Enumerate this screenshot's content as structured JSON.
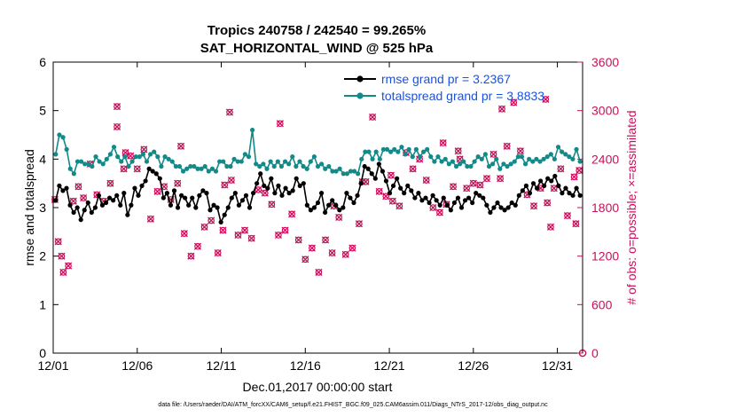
{
  "chart_data": {
    "type": "line",
    "title": "Tropics 240758 / 242540 = 99.265%",
    "subtitle": "SAT_HORIZONTAL_WIND @ 525 hPa",
    "xlabel": "Dec.01,2017 00:00:00 start",
    "ylabel": "rmse and totalspread",
    "y2label": "# of obs: o=possible; ×=assimilated",
    "xlim": [
      0,
      31.5
    ],
    "ylim": [
      0,
      6
    ],
    "y2lim": [
      0,
      3600
    ],
    "xticks": [
      0,
      5,
      10,
      15,
      20,
      25,
      30
    ],
    "xtick_labels": [
      "12/01",
      "12/06",
      "12/11",
      "12/16",
      "12/21",
      "12/26",
      "12/31"
    ],
    "yticks": [
      0,
      1,
      2,
      3,
      4,
      5,
      6
    ],
    "y2ticks": [
      0,
      600,
      1200,
      1800,
      2400,
      3000,
      3600
    ],
    "legend_location": "top-right",
    "colors": {
      "rmse": "#000000",
      "totalspread": "#138a8a",
      "obs": "#c8105a",
      "legend_text": "#1a52e0"
    },
    "series": [
      {
        "name": "rmse grand pr = 3.2367",
        "axis": "left",
        "values": [
          3.15,
          3.45,
          3.35,
          3.4,
          3.05,
          2.9,
          3.0,
          2.75,
          2.95,
          3.1,
          2.9,
          3.0,
          3.25,
          3.05,
          3.1,
          3.2,
          3.15,
          3.25,
          3.05,
          3.3,
          2.85,
          3.05,
          3.4,
          3.25,
          3.45,
          3.55,
          3.8,
          3.75,
          3.7,
          3.6,
          3.2,
          3.3,
          3.05,
          3.35,
          3.0,
          3.25,
          3.2,
          3.05,
          3.2,
          3.0,
          3.25,
          3.35,
          3.3,
          2.95,
          3.05,
          3.0,
          2.7,
          2.85,
          3.0,
          3.2,
          3.3,
          3.05,
          3.15,
          3.25,
          3.0,
          3.3,
          3.5,
          3.7,
          3.45,
          3.4,
          3.6,
          3.3,
          3.45,
          3.25,
          3.4,
          3.3,
          3.35,
          3.6,
          3.45,
          3.5,
          3.05,
          2.95,
          3.0,
          3.1,
          3.3,
          2.9,
          3.05,
          3.15,
          3.05,
          2.95,
          3.0,
          3.3,
          3.2,
          3.1,
          3.25,
          3.5,
          3.85,
          3.8,
          3.7,
          3.6,
          3.9,
          3.75,
          3.55,
          3.3,
          3.45,
          3.6,
          3.4,
          3.3,
          3.45,
          3.35,
          3.2,
          3.3,
          3.15,
          3.2,
          3.1,
          3.25,
          3.15,
          3.05,
          3.2,
          3.05,
          2.95,
          3.1,
          3.2,
          3.0,
          3.15,
          3.2,
          3.1,
          3.3,
          3.25,
          3.2,
          3.05,
          2.9,
          3.0,
          3.1,
          3.0,
          2.95,
          3.0,
          3.1,
          3.05,
          3.25,
          3.35,
          3.45,
          3.3,
          3.5,
          3.4,
          3.55,
          3.45,
          3.6,
          3.55,
          3.65,
          3.45,
          3.3,
          3.4,
          3.3,
          3.25,
          3.4,
          3.25
        ]
      },
      {
        "name": "totalspread grand pr = 3.8833",
        "axis": "left",
        "values": [
          4.1,
          4.5,
          4.45,
          4.2,
          3.8,
          3.7,
          3.95,
          3.95,
          3.9,
          3.9,
          3.85,
          4.05,
          3.95,
          3.9,
          4.0,
          4.1,
          4.25,
          4.05,
          3.95,
          4.05,
          3.85,
          3.95,
          4.05,
          4.05,
          4.1,
          3.95,
          4.1,
          4.15,
          4.05,
          3.85,
          4.05,
          4.0,
          3.95,
          3.85,
          3.85,
          3.75,
          3.8,
          3.85,
          3.85,
          3.8,
          3.8,
          3.85,
          3.75,
          3.8,
          3.75,
          3.95,
          3.95,
          3.85,
          3.85,
          4.0,
          3.95,
          3.95,
          4.1,
          4.05,
          4.6,
          3.9,
          3.85,
          3.9,
          3.8,
          3.95,
          3.85,
          3.95,
          3.85,
          3.95,
          3.9,
          4.05,
          3.85,
          3.95,
          3.85,
          3.8,
          3.95,
          4.05,
          3.85,
          3.9,
          3.8,
          3.85,
          3.75,
          3.75,
          3.8,
          3.7,
          3.7,
          3.75,
          3.75,
          3.7,
          4.0,
          4.15,
          4.15,
          4.0,
          4.15,
          4.0,
          4.2,
          4.2,
          4.15,
          4.2,
          4.15,
          4.25,
          4.1,
          4.2,
          4.05,
          4.2,
          4.05,
          4.15,
          4.2,
          4.05,
          3.95,
          4.05,
          3.95,
          4.0,
          3.9,
          3.95,
          3.85,
          3.9,
          3.95,
          3.85,
          3.85,
          3.95,
          4.05,
          4.0,
          4.1,
          3.85,
          3.9,
          4.0,
          3.8,
          3.9,
          3.85,
          3.9,
          3.95,
          4.05,
          4.05,
          3.9,
          4.0,
          3.95,
          4.0,
          3.95,
          4.0,
          4.05,
          4.1,
          4.0,
          4.25,
          4.15,
          4.1,
          4.05,
          4.0,
          4.2,
          3.95
        ]
      }
    ],
    "assimilated_obs": {
      "name": "assimilated",
      "axis": "right",
      "x": [
        0.1,
        0.3,
        0.6,
        0.9,
        1.2,
        1.5,
        1.8,
        2.2,
        2.6,
        3.0,
        3.4,
        3.8,
        4.2,
        4.6,
        5.0,
        5.4,
        5.8,
        6.2,
        6.6,
        7.0,
        7.4,
        7.8,
        8.2,
        8.6,
        9.0,
        9.4,
        9.8,
        10.2,
        10.6,
        11.0,
        11.4,
        11.8,
        12.2,
        12.6,
        13.0,
        13.4,
        13.8,
        14.2,
        14.6,
        15.0,
        15.4,
        15.8,
        16.2,
        16.6,
        17.0,
        17.4,
        17.8,
        18.2,
        18.6,
        19.0,
        19.4,
        19.8,
        20.2,
        20.6,
        21.0,
        21.4,
        21.8,
        22.2,
        22.6,
        23.0,
        23.4,
        23.8,
        24.2,
        24.6,
        25.0,
        25.4,
        25.8,
        26.2,
        26.6,
        27.0,
        27.4,
        27.8,
        28.2,
        28.6,
        29.0,
        29.4,
        29.8,
        30.2,
        30.6,
        31.0,
        31.3,
        0.5,
        3.8,
        7.6,
        10.1,
        13.5,
        16.7,
        20.1,
        23.2,
        26.7,
        29.6
      ],
      "values": [
        1900,
        1380,
        1000,
        1080,
        1880,
        2060,
        1920,
        2340,
        1960,
        1880,
        2100,
        3050,
        2280,
        2440,
        2280,
        2520,
        1660,
        2000,
        2060,
        1900,
        2100,
        1480,
        1200,
        1320,
        1560,
        1640,
        1240,
        2080,
        2140,
        1460,
        1520,
        1420,
        2020,
        1980,
        1840,
        1460,
        1520,
        1720,
        1400,
        1160,
        1300,
        1000,
        1400,
        1240,
        1680,
        1220,
        1300,
        1600,
        2120,
        2920,
        2000,
        1940,
        1880,
        1820,
        2480,
        2280,
        2400,
        2140,
        1800,
        1740,
        1840,
        2060,
        2400,
        2040,
        2100,
        2080,
        2160,
        2460,
        2160,
        2560,
        3100,
        2500,
        1960,
        1820,
        2040,
        1860,
        2040,
        2280,
        1700,
        2180,
        2260,
        1200,
        2800,
        2560,
        1520,
        2840,
        1820,
        2200,
        2600,
        3020,
        1560
      ],
      "extra": {
        "x": [
          4.3,
          10.5,
          18.4,
          24.1,
          29.3,
          31.1
        ],
        "values": [
          2480,
          2980,
          2120,
          2500,
          3140,
          1600
        ]
      }
    },
    "possible_obs_end": {
      "x": 31.5,
      "value": 0
    },
    "footer": "data file: /Users/raeder/DAI/ATM_forcXX/CAM6_setup/f.e21.FHIST_BGC.f09_025.CAM6assim.011/Diags_NTrS_2017-12/obs_diag_output.nc"
  }
}
